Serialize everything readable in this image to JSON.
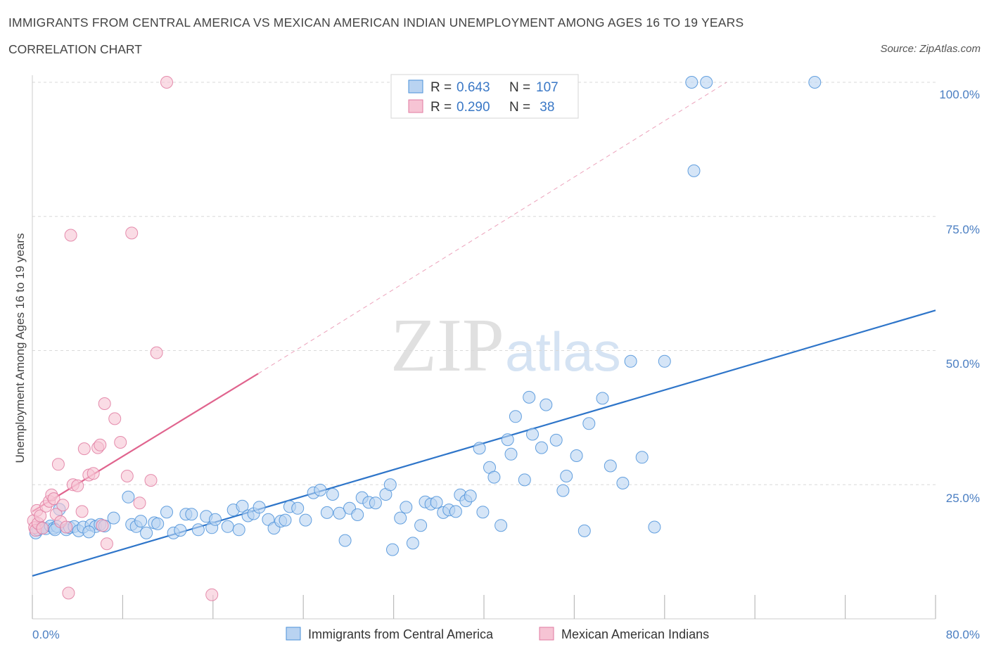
{
  "header": {
    "title": "IMMIGRANTS FROM CENTRAL AMERICA VS MEXICAN AMERICAN INDIAN UNEMPLOYMENT AMONG AGES 16 TO 19 YEARS",
    "subtitle": "CORRELATION CHART",
    "source": "Source: ZipAtlas.com"
  },
  "watermark": {
    "zip": "ZIP",
    "atlas": "atlas"
  },
  "colors": {
    "blue": "#4a90d9",
    "blue_fill": "#b9d3f1",
    "blue_line": "#2e75c9",
    "pink": "#e07aa0",
    "pink_fill": "#f6c4d4",
    "pink_line": "#e0648e",
    "grid": "#d9d9d9",
    "tick_text": "#4a7ec2"
  },
  "legend_top": {
    "rows": [
      {
        "r_label": "R = ",
        "r_value": "0.643",
        "n_label": "N = ",
        "n_value": "107"
      },
      {
        "r_label": "R = ",
        "r_value": "0.290",
        "n_label": "N = ",
        "n_value": " 38"
      }
    ]
  },
  "legend_bottom": {
    "items": [
      "Immigrants from Central America",
      "Mexican American Indians"
    ]
  },
  "chart_data": {
    "type": "scatter",
    "title": "IMMIGRANTS FROM CENTRAL AMERICA VS MEXICAN AMERICAN INDIAN UNEMPLOYMENT AMONG AGES 16 TO 19 YEARS",
    "xlabel": "",
    "ylabel": "Unemployment Among Ages 16 to 19 years",
    "xlim": [
      0,
      80
    ],
    "ylim": [
      0,
      100
    ],
    "x_tick_labels": [
      "0.0%",
      "80.0%"
    ],
    "y_ticks": [
      25,
      50,
      75,
      100
    ],
    "y_tick_labels": [
      "25.0%",
      "50.0%",
      "75.0%",
      "100.0%"
    ],
    "series": [
      {
        "name": "Immigrants from Central America",
        "R": 0.643,
        "N": 107,
        "trend": {
          "x": [
            0,
            80
          ],
          "y": [
            8.0,
            57.5
          ]
        },
        "points": [
          [
            0.3,
            16.0
          ],
          [
            0.5,
            16.6
          ],
          [
            0.8,
            17.0
          ],
          [
            1.2,
            16.8
          ],
          [
            1.6,
            17.3
          ],
          [
            1.9,
            16.9
          ],
          [
            2.2,
            17.2
          ],
          [
            2.4,
            20.4
          ],
          [
            3.0,
            16.6
          ],
          [
            3.3,
            17.0
          ],
          [
            3.7,
            17.2
          ],
          [
            4.1,
            16.4
          ],
          [
            4.5,
            17.1
          ],
          [
            5.2,
            17.5
          ],
          [
            5.6,
            17.2
          ],
          [
            6.0,
            17.6
          ],
          [
            6.4,
            17.3
          ],
          [
            7.2,
            18.8
          ],
          [
            8.5,
            22.7
          ],
          [
            8.8,
            17.6
          ],
          [
            9.2,
            17.2
          ],
          [
            9.6,
            18.2
          ],
          [
            10.1,
            16.0
          ],
          [
            10.8,
            17.9
          ],
          [
            11.1,
            17.7
          ],
          [
            11.9,
            19.9
          ],
          [
            12.5,
            16.0
          ],
          [
            13.1,
            16.5
          ],
          [
            13.6,
            19.5
          ],
          [
            14.1,
            19.5
          ],
          [
            14.7,
            16.6
          ],
          [
            15.4,
            19.1
          ],
          [
            15.9,
            17.0
          ],
          [
            16.2,
            18.5
          ],
          [
            17.3,
            17.2
          ],
          [
            17.8,
            20.3
          ],
          [
            18.3,
            16.6
          ],
          [
            18.6,
            21.0
          ],
          [
            19.1,
            19.2
          ],
          [
            19.6,
            19.6
          ],
          [
            20.1,
            20.8
          ],
          [
            20.9,
            18.5
          ],
          [
            21.4,
            16.9
          ],
          [
            22.0,
            18.2
          ],
          [
            22.4,
            18.4
          ],
          [
            22.8,
            20.9
          ],
          [
            23.5,
            20.6
          ],
          [
            24.2,
            18.4
          ],
          [
            24.9,
            23.5
          ],
          [
            25.5,
            24.0
          ],
          [
            26.1,
            19.8
          ],
          [
            26.6,
            23.2
          ],
          [
            27.2,
            19.7
          ],
          [
            27.7,
            14.6
          ],
          [
            28.1,
            20.6
          ],
          [
            28.8,
            19.4
          ],
          [
            29.2,
            22.6
          ],
          [
            29.8,
            21.7
          ],
          [
            30.4,
            21.6
          ],
          [
            31.3,
            23.2
          ],
          [
            31.7,
            25.0
          ],
          [
            31.9,
            12.9
          ],
          [
            32.6,
            18.8
          ],
          [
            33.1,
            20.8
          ],
          [
            33.7,
            14.1
          ],
          [
            34.4,
            17.4
          ],
          [
            34.8,
            21.8
          ],
          [
            35.3,
            21.4
          ],
          [
            35.8,
            21.7
          ],
          [
            36.4,
            19.8
          ],
          [
            36.9,
            20.3
          ],
          [
            37.5,
            20.0
          ],
          [
            37.9,
            23.1
          ],
          [
            38.4,
            22.0
          ],
          [
            38.8,
            22.9
          ],
          [
            39.6,
            31.8
          ],
          [
            39.9,
            19.9
          ],
          [
            40.5,
            28.2
          ],
          [
            40.9,
            26.4
          ],
          [
            41.5,
            17.4
          ],
          [
            42.1,
            33.4
          ],
          [
            42.4,
            30.7
          ],
          [
            42.8,
            37.7
          ],
          [
            43.6,
            25.9
          ],
          [
            44.0,
            41.3
          ],
          [
            44.3,
            34.4
          ],
          [
            45.1,
            31.9
          ],
          [
            45.5,
            39.9
          ],
          [
            46.4,
            33.3
          ],
          [
            47.0,
            23.9
          ],
          [
            47.3,
            26.6
          ],
          [
            48.2,
            30.4
          ],
          [
            48.9,
            16.4
          ],
          [
            49.3,
            36.4
          ],
          [
            50.5,
            41.1
          ],
          [
            51.2,
            28.5
          ],
          [
            52.3,
            25.3
          ],
          [
            53.0,
            48.0
          ],
          [
            54.0,
            30.1
          ],
          [
            55.1,
            17.1
          ],
          [
            56.0,
            48.0
          ],
          [
            58.6,
            83.5
          ],
          [
            58.4,
            100.0
          ],
          [
            59.7,
            100.0
          ],
          [
            69.3,
            100.0
          ],
          [
            2.0,
            16.6
          ],
          [
            5.0,
            16.2
          ]
        ]
      },
      {
        "name": "Mexican American Indians",
        "R": 0.29,
        "N": 38,
        "trend": {
          "x": [
            0,
            20
          ],
          "y": [
            20.0,
            45.7
          ]
        },
        "trend_ext": {
          "x": [
            20,
            61.5
          ],
          "y": [
            45.7,
            100.0
          ]
        },
        "points": [
          [
            0.1,
            18.3
          ],
          [
            0.2,
            17.0
          ],
          [
            0.3,
            16.5
          ],
          [
            0.4,
            20.2
          ],
          [
            0.5,
            17.8
          ],
          [
            0.7,
            19.2
          ],
          [
            0.9,
            16.9
          ],
          [
            1.2,
            21.0
          ],
          [
            1.5,
            21.9
          ],
          [
            1.7,
            23.1
          ],
          [
            1.9,
            22.4
          ],
          [
            2.1,
            19.5
          ],
          [
            2.3,
            28.8
          ],
          [
            2.5,
            18.1
          ],
          [
            2.7,
            21.2
          ],
          [
            3.0,
            17.1
          ],
          [
            3.2,
            4.8
          ],
          [
            3.4,
            71.5
          ],
          [
            3.6,
            25.0
          ],
          [
            4.0,
            24.8
          ],
          [
            4.4,
            20.0
          ],
          [
            4.6,
            31.7
          ],
          [
            5.0,
            26.8
          ],
          [
            5.4,
            27.1
          ],
          [
            5.8,
            31.9
          ],
          [
            6.0,
            32.4
          ],
          [
            6.2,
            17.4
          ],
          [
            6.4,
            40.1
          ],
          [
            6.6,
            14.0
          ],
          [
            7.3,
            37.3
          ],
          [
            7.8,
            32.9
          ],
          [
            8.4,
            26.6
          ],
          [
            8.8,
            71.9
          ],
          [
            9.5,
            21.6
          ],
          [
            10.5,
            25.8
          ],
          [
            11.0,
            49.6
          ],
          [
            11.9,
            100.0
          ],
          [
            15.9,
            4.5
          ]
        ]
      }
    ]
  }
}
